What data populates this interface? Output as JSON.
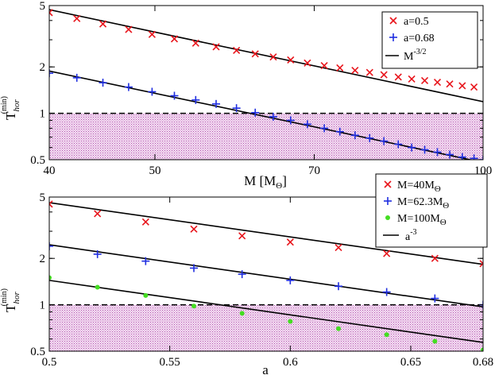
{
  "chart_data": [
    {
      "type": "scatter",
      "id": "top",
      "xscale": "log",
      "yscale": "log",
      "xlim": [
        40,
        100
      ],
      "ylim": [
        0.5,
        5
      ],
      "xticks": [
        40,
        50,
        70,
        100
      ],
      "xtick_labels": [
        "40",
        "50",
        "70",
        "100"
      ],
      "yticks": [
        0.5,
        1,
        2,
        5
      ],
      "ytick_labels": [
        "0.5",
        "1",
        "2",
        "5"
      ],
      "xlabel": {
        "main": "M [M",
        "sub": "Θ",
        "end": "]"
      },
      "ylabel": {
        "main": "T",
        "sup": "(min)",
        "sub": "hor"
      },
      "threshold": 1,
      "series": [
        {
          "name": "a=0.5",
          "marker": "x",
          "color": "#e8141b",
          "x": [
            40,
            42.4,
            44.8,
            47.3,
            49.7,
            52.1,
            54.5,
            56.9,
            59.4,
            61.8,
            64.2,
            66.6,
            69,
            71.5,
            73.9,
            76.3,
            78.7,
            81.1,
            83.6,
            86,
            88.4,
            90.8,
            93.2,
            95.7,
            98.1
          ],
          "y": [
            4.5,
            4.12,
            3.8,
            3.5,
            3.25,
            3.04,
            2.85,
            2.7,
            2.56,
            2.43,
            2.32,
            2.22,
            2.12,
            2.04,
            1.97,
            1.9,
            1.84,
            1.78,
            1.72,
            1.67,
            1.63,
            1.59,
            1.55,
            1.51,
            1.48
          ]
        },
        {
          "name": "a=0.68",
          "marker": "+",
          "color": "#1f2ee0",
          "x": [
            40,
            42.4,
            44.8,
            47.3,
            49.7,
            52.1,
            54.5,
            56.9,
            59.4,
            61.8,
            64.2,
            66.6,
            69,
            71.5,
            73.9,
            76.3,
            78.7,
            81.1,
            83.6,
            86,
            88.4,
            90.8,
            93.2,
            95.7,
            98.1,
            100
          ],
          "y": [
            1.82,
            1.7,
            1.58,
            1.48,
            1.38,
            1.3,
            1.22,
            1.15,
            1.08,
            1.01,
            0.95,
            0.9,
            0.85,
            0.8,
            0.76,
            0.72,
            0.69,
            0.66,
            0.63,
            0.6,
            0.58,
            0.56,
            0.54,
            0.52,
            0.51,
            0.5
          ]
        }
      ],
      "fit_lines": [
        {
          "name": "fit-a05",
          "slope": -1.5,
          "x": [
            40,
            100
          ],
          "y": [
            4.7,
            1.19
          ]
        },
        {
          "name": "fit-a068",
          "slope": -1.5,
          "x": [
            40,
            100
          ],
          "y": [
            1.88,
            0.48
          ]
        }
      ],
      "legend": {
        "position": "top-right",
        "entries": [
          {
            "label": "a=0.5",
            "marker": "x"
          },
          {
            "label": "a=0.68",
            "marker": "+"
          },
          {
            "label_main": "M",
            "label_sup": "-3/2",
            "marker": "line"
          }
        ]
      }
    },
    {
      "type": "scatter",
      "id": "bottom",
      "xscale": "linear",
      "yscale": "log",
      "xlim": [
        0.5,
        0.68
      ],
      "ylim": [
        0.5,
        5
      ],
      "xticks": [
        0.5,
        0.55,
        0.6,
        0.65,
        0.68
      ],
      "xtick_labels": [
        "0.5",
        "0.55",
        "0.6",
        "0.65",
        "0.68"
      ],
      "yticks": [
        0.5,
        1,
        2,
        5
      ],
      "ytick_labels": [
        "0.5",
        "1",
        "2",
        "5"
      ],
      "xlabel": {
        "main": "a"
      },
      "ylabel": {
        "main": "T",
        "sup": "(min)",
        "sub": "hor"
      },
      "threshold": 1,
      "series": [
        {
          "name": "M=40MΘ",
          "marker": "x",
          "color": "#e8141b",
          "x": [
            0.5,
            0.52,
            0.54,
            0.56,
            0.58,
            0.6,
            0.62,
            0.64,
            0.66,
            0.68
          ],
          "y": [
            4.5,
            3.9,
            3.45,
            3.1,
            2.8,
            2.55,
            2.35,
            2.15,
            2.0,
            1.85
          ]
        },
        {
          "name": "M=62.3MΘ",
          "marker": "+",
          "color": "#1f2ee0",
          "x": [
            0.5,
            0.52,
            0.54,
            0.56,
            0.58,
            0.6,
            0.62,
            0.64,
            0.66,
            0.68
          ],
          "y": [
            2.4,
            2.13,
            1.92,
            1.73,
            1.58,
            1.44,
            1.32,
            1.21,
            1.1,
            1.0
          ]
        },
        {
          "name": "M=100MΘ",
          "marker": "dot",
          "color": "#44dd22",
          "x": [
            0.5,
            0.52,
            0.54,
            0.56,
            0.58,
            0.6,
            0.62,
            0.64,
            0.66,
            0.68
          ],
          "y": [
            1.5,
            1.3,
            1.15,
            0.98,
            0.88,
            0.78,
            0.7,
            0.64,
            0.58,
            0.51
          ]
        }
      ],
      "fit_lines": [
        {
          "name": "fit-m40",
          "slope": -3,
          "x": [
            0.5,
            0.68
          ],
          "y": [
            4.6,
            1.83
          ]
        },
        {
          "name": "fit-m62",
          "slope": -3,
          "x": [
            0.5,
            0.68
          ],
          "y": [
            2.45,
            0.97
          ]
        },
        {
          "name": "fit-m100",
          "slope": -3,
          "x": [
            0.5,
            0.68
          ],
          "y": [
            1.44,
            0.57
          ]
        }
      ],
      "legend": {
        "position": "top-right",
        "entries": [
          {
            "label_main": "M=40M",
            "label_sub": "Θ",
            "marker": "x"
          },
          {
            "label_main": "M=62.3M",
            "label_sub": "Θ",
            "marker": "+"
          },
          {
            "label_main": "M=100M",
            "label_sub": "Θ",
            "marker": "dot"
          },
          {
            "label_main": "a",
            "label_sup": "-3",
            "marker": "line"
          }
        ]
      }
    }
  ],
  "colors": {
    "shade": "#f3d6f1",
    "shade_dots": "#b25ab0",
    "fit_line": "#000000",
    "threshold_line": "#000000"
  }
}
